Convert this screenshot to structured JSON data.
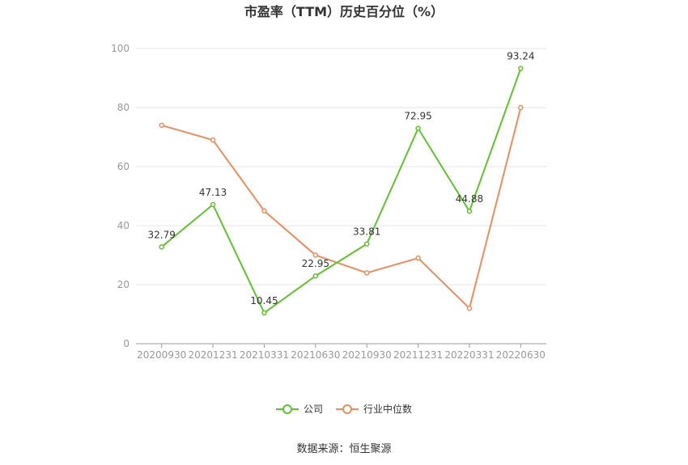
{
  "chart_data": {
    "type": "line",
    "title": "市盈率（TTM）历史百分位（%）",
    "categories": [
      "20200930",
      "20201231",
      "20210331",
      "20210630",
      "20210930",
      "20211231",
      "20220331",
      "20220630"
    ],
    "series": [
      {
        "name": "公司",
        "values": [
          32.79,
          47.13,
          10.45,
          22.95,
          33.81,
          72.95,
          44.88,
          93.24
        ],
        "color": "#5dc628",
        "show_labels": true
      },
      {
        "name": "行业中位数",
        "values": [
          74,
          69,
          45,
          30,
          24,
          29,
          12,
          80
        ],
        "color": "#f08c5a",
        "show_labels": false
      }
    ],
    "ylim": [
      0,
      100
    ],
    "yticks": [
      0,
      20,
      40,
      60,
      80,
      100
    ],
    "grid": true,
    "legend_position": "bottom-center"
  },
  "source": "数据来源：恒生聚源"
}
